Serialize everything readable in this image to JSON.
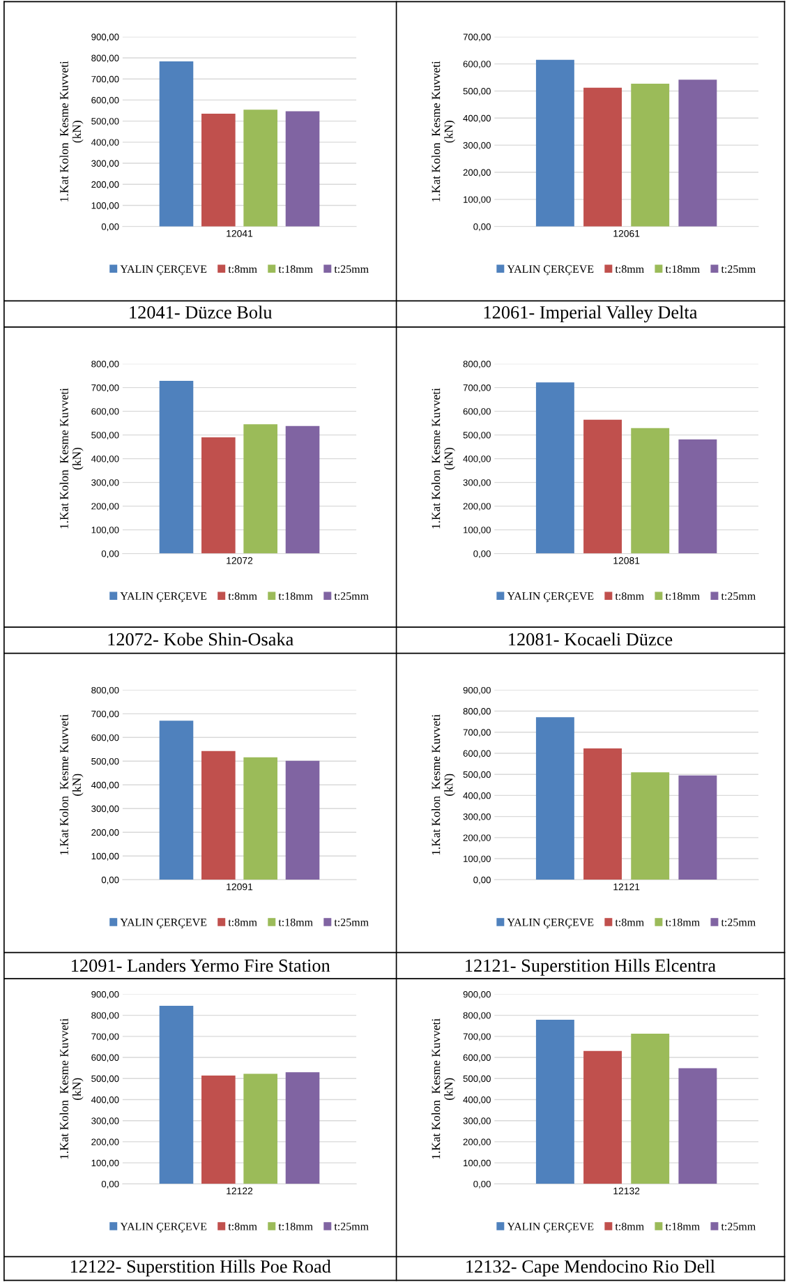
{
  "chart_data": [
    {
      "type": "bar",
      "title": "12041- Düzce Bolu",
      "ylabel": "1.Kat Kolon  Kesme Kuvveti\n(kN)",
      "categories": [
        "12041"
      ],
      "legend": "bottom",
      "grid": "y",
      "ylim": [
        0,
        900
      ],
      "yticks": [
        {
          "value": 0,
          "label": "0,00"
        },
        {
          "value": 100,
          "label": "100,00"
        },
        {
          "value": 200,
          "label": "200,00"
        },
        {
          "value": 300,
          "label": "300,00"
        },
        {
          "value": 400,
          "label": "400,00"
        },
        {
          "value": 500,
          "label": "500,00"
        },
        {
          "value": 600,
          "label": "600,00"
        },
        {
          "value": 700,
          "label": "700,00"
        },
        {
          "value": 800,
          "label": "800,00"
        },
        {
          "value": 900,
          "label": "900,00"
        }
      ],
      "series": [
        {
          "name": "YALIN ÇERÇEVE",
          "color": "#4f81bd",
          "values": [
            783
          ]
        },
        {
          "name": "t:8mm",
          "color": "#c0504d",
          "values": [
            535
          ]
        },
        {
          "name": "t:18mm",
          "color": "#9bbb59",
          "values": [
            554
          ]
        },
        {
          "name": "t:25mm",
          "color": "#8064a2",
          "values": [
            547
          ]
        }
      ]
    },
    {
      "type": "bar",
      "title": "12061- Imperial Valley Delta",
      "ylabel": "1.Kat Kolon  Kesme Kuvveti\n(kN)",
      "categories": [
        "12061"
      ],
      "legend": "bottom",
      "grid": "y",
      "ylim": [
        0,
        700
      ],
      "yticks": [
        {
          "value": 0,
          "label": "0,00"
        },
        {
          "value": 100,
          "label": "100,00"
        },
        {
          "value": 200,
          "label": "200,00"
        },
        {
          "value": 300,
          "label": "300,00"
        },
        {
          "value": 400,
          "label": "400,00"
        },
        {
          "value": 500,
          "label": "500,00"
        },
        {
          "value": 600,
          "label": "600,00"
        },
        {
          "value": 700,
          "label": "700,00"
        }
      ],
      "series": [
        {
          "name": "YALIN ÇERÇEVE",
          "color": "#4f81bd",
          "values": [
            615
          ]
        },
        {
          "name": "t:8mm",
          "color": "#c0504d",
          "values": [
            512
          ]
        },
        {
          "name": "t:18mm",
          "color": "#9bbb59",
          "values": [
            527
          ]
        },
        {
          "name": "t:25mm",
          "color": "#8064a2",
          "values": [
            542
          ]
        }
      ]
    },
    {
      "type": "bar",
      "title": "12072- Kobe Shin-Osaka",
      "ylabel": "1.Kat Kolon  Kesme Kuvveti\n(kN)",
      "categories": [
        "12072"
      ],
      "legend": "bottom",
      "grid": "y",
      "ylim": [
        0,
        800
      ],
      "yticks": [
        {
          "value": 0,
          "label": "0,00"
        },
        {
          "value": 100,
          "label": "100,00"
        },
        {
          "value": 200,
          "label": "200,00"
        },
        {
          "value": 300,
          "label": "300,00"
        },
        {
          "value": 400,
          "label": "400,00"
        },
        {
          "value": 500,
          "label": "500,00"
        },
        {
          "value": 600,
          "label": "600,00"
        },
        {
          "value": 700,
          "label": "700,00"
        },
        {
          "value": 800,
          "label": "800,00"
        }
      ],
      "series": [
        {
          "name": "YALIN ÇERÇEVE",
          "color": "#4f81bd",
          "values": [
            728
          ]
        },
        {
          "name": "t:8mm",
          "color": "#c0504d",
          "values": [
            490
          ]
        },
        {
          "name": "t:18mm",
          "color": "#9bbb59",
          "values": [
            545
          ]
        },
        {
          "name": "t:25mm",
          "color": "#8064a2",
          "values": [
            538
          ]
        }
      ]
    },
    {
      "type": "bar",
      "title": "12081- Kocaeli Düzce",
      "ylabel": "1.Kat Kolon  Kesme Kuvveti\n(kN)",
      "categories": [
        "12081"
      ],
      "legend": "bottom",
      "grid": "y",
      "ylim": [
        0,
        800
      ],
      "yticks": [
        {
          "value": 0,
          "label": "0,00"
        },
        {
          "value": 100,
          "label": "100,00"
        },
        {
          "value": 200,
          "label": "200,00"
        },
        {
          "value": 300,
          "label": "300,00"
        },
        {
          "value": 400,
          "label": "400,00"
        },
        {
          "value": 500,
          "label": "500,00"
        },
        {
          "value": 600,
          "label": "600,00"
        },
        {
          "value": 700,
          "label": "700,00"
        },
        {
          "value": 800,
          "label": "800,00"
        }
      ],
      "series": [
        {
          "name": "YALIN ÇERÇEVE",
          "color": "#4f81bd",
          "values": [
            722
          ]
        },
        {
          "name": "t:8mm",
          "color": "#c0504d",
          "values": [
            564
          ]
        },
        {
          "name": "t:18mm",
          "color": "#9bbb59",
          "values": [
            529
          ]
        },
        {
          "name": "t:25mm",
          "color": "#8064a2",
          "values": [
            481
          ]
        }
      ]
    },
    {
      "type": "bar",
      "title": "12091- Landers Yermo Fire Station",
      "ylabel": "1.Kat Kolon  Kesme Kuvveti\n(kN)",
      "categories": [
        "12091"
      ],
      "legend": "bottom",
      "grid": "y",
      "ylim": [
        0,
        800
      ],
      "yticks": [
        {
          "value": 0,
          "label": "0,00"
        },
        {
          "value": 100,
          "label": "100,00"
        },
        {
          "value": 200,
          "label": "200,00"
        },
        {
          "value": 300,
          "label": "300,00"
        },
        {
          "value": 400,
          "label": "400,00"
        },
        {
          "value": 500,
          "label": "500,00"
        },
        {
          "value": 600,
          "label": "600,00"
        },
        {
          "value": 700,
          "label": "700,00"
        },
        {
          "value": 800,
          "label": "800,00"
        }
      ],
      "series": [
        {
          "name": "YALIN ÇERÇEVE",
          "color": "#4f81bd",
          "values": [
            671
          ]
        },
        {
          "name": "t:8mm",
          "color": "#c0504d",
          "values": [
            543
          ]
        },
        {
          "name": "t:18mm",
          "color": "#9bbb59",
          "values": [
            516
          ]
        },
        {
          "name": "t:25mm",
          "color": "#8064a2",
          "values": [
            502
          ]
        }
      ]
    },
    {
      "type": "bar",
      "title": "12121- Superstition Hills Elcentra",
      "ylabel": "1.Kat Kolon  Kesme Kuvveti\n(kN)",
      "categories": [
        "12121"
      ],
      "legend": "bottom",
      "grid": "y",
      "ylim": [
        0,
        900
      ],
      "yticks": [
        {
          "value": 0,
          "label": "0,00"
        },
        {
          "value": 100,
          "label": "100,00"
        },
        {
          "value": 200,
          "label": "200,00"
        },
        {
          "value": 300,
          "label": "300,00"
        },
        {
          "value": 400,
          "label": "400,00"
        },
        {
          "value": 500,
          "label": "500,00"
        },
        {
          "value": 600,
          "label": "600,00"
        },
        {
          "value": 700,
          "label": "700,00"
        },
        {
          "value": 800,
          "label": "800,00"
        },
        {
          "value": 900,
          "label": "900,00"
        }
      ],
      "series": [
        {
          "name": "YALIN ÇERÇEVE",
          "color": "#4f81bd",
          "values": [
            771
          ]
        },
        {
          "name": "t:8mm",
          "color": "#c0504d",
          "values": [
            623
          ]
        },
        {
          "name": "t:18mm",
          "color": "#9bbb59",
          "values": [
            510
          ]
        },
        {
          "name": "t:25mm",
          "color": "#8064a2",
          "values": [
            495
          ]
        }
      ]
    },
    {
      "type": "bar",
      "title": "12122- Superstition Hills Poe Road",
      "ylabel": "1.Kat Kolon  Kesme Kuvveti\n(kN)",
      "categories": [
        "12122"
      ],
      "legend": "bottom",
      "grid": "y",
      "ylim": [
        0,
        900
      ],
      "yticks": [
        {
          "value": 0,
          "label": "0,00"
        },
        {
          "value": 100,
          "label": "100,00"
        },
        {
          "value": 200,
          "label": "200,00"
        },
        {
          "value": 300,
          "label": "300,00"
        },
        {
          "value": 400,
          "label": "400,00"
        },
        {
          "value": 500,
          "label": "500,00"
        },
        {
          "value": 600,
          "label": "600,00"
        },
        {
          "value": 700,
          "label": "700,00"
        },
        {
          "value": 800,
          "label": "800,00"
        },
        {
          "value": 900,
          "label": "900,00"
        }
      ],
      "series": [
        {
          "name": "YALIN ÇERÇEVE",
          "color": "#4f81bd",
          "values": [
            845
          ]
        },
        {
          "name": "t:8mm",
          "color": "#c0504d",
          "values": [
            514
          ]
        },
        {
          "name": "t:18mm",
          "color": "#9bbb59",
          "values": [
            522
          ]
        },
        {
          "name": "t:25mm",
          "color": "#8064a2",
          "values": [
            530
          ]
        }
      ]
    },
    {
      "type": "bar",
      "title": "12132- Cape Mendocino Rio Dell",
      "ylabel": "1.Kat Kolon  Kesme Kuvveti\n(kN)",
      "categories": [
        "12132"
      ],
      "legend": "bottom",
      "grid": "y",
      "ylim": [
        0,
        900
      ],
      "yticks": [
        {
          "value": 0,
          "label": "0,00"
        },
        {
          "value": 100,
          "label": "100,00"
        },
        {
          "value": 200,
          "label": "200,00"
        },
        {
          "value": 300,
          "label": "300,00"
        },
        {
          "value": 400,
          "label": "400,00"
        },
        {
          "value": 500,
          "label": "500,00"
        },
        {
          "value": 600,
          "label": "600,00"
        },
        {
          "value": 700,
          "label": "700,00"
        },
        {
          "value": 800,
          "label": "800,00"
        },
        {
          "value": 900,
          "label": "900,00"
        }
      ],
      "series": [
        {
          "name": "YALIN ÇERÇEVE",
          "color": "#4f81bd",
          "values": [
            779
          ]
        },
        {
          "name": "t:8mm",
          "color": "#c0504d",
          "values": [
            631
          ]
        },
        {
          "name": "t:18mm",
          "color": "#9bbb59",
          "values": [
            713
          ]
        },
        {
          "name": "t:25mm",
          "color": "#8064a2",
          "values": [
            549
          ]
        }
      ]
    }
  ]
}
